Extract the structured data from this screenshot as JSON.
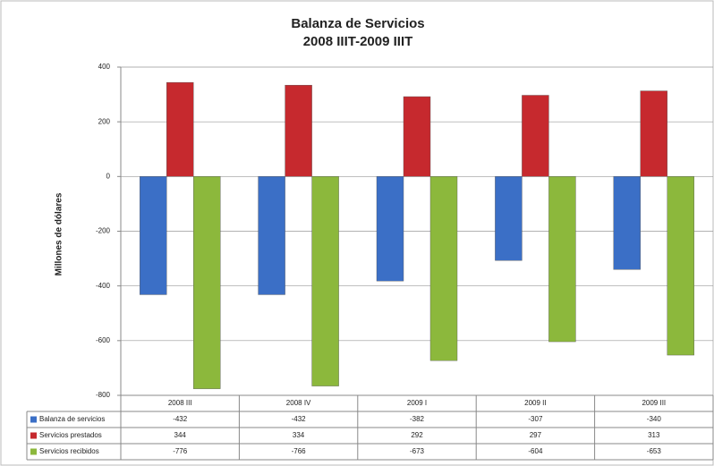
{
  "chart_data": {
    "type": "bar",
    "title": [
      "Balanza de Servicios",
      "2008 IIIT-2009 IIIT"
    ],
    "ylabel": "Millones de dólares",
    "categories": [
      "2008 III",
      "2008 IV",
      "2009 I",
      "2009 II",
      "2009 III"
    ],
    "series": [
      {
        "name": "Balanza de servicios",
        "color": "#3b6fc6",
        "values": [
          -432,
          -432,
          -382,
          -307,
          -340
        ]
      },
      {
        "name": "Servicios prestados",
        "color": "#c6292e",
        "values": [
          344,
          334,
          292,
          297,
          313
        ]
      },
      {
        "name": "Servicios recibidos",
        "color": "#8cb83c",
        "values": [
          -776,
          -766,
          -673,
          -604,
          -653
        ]
      }
    ],
    "ylim": [
      -800,
      400
    ],
    "yticks": [
      -800,
      -600,
      -400,
      -200,
      0,
      200,
      400
    ],
    "grid": true
  }
}
